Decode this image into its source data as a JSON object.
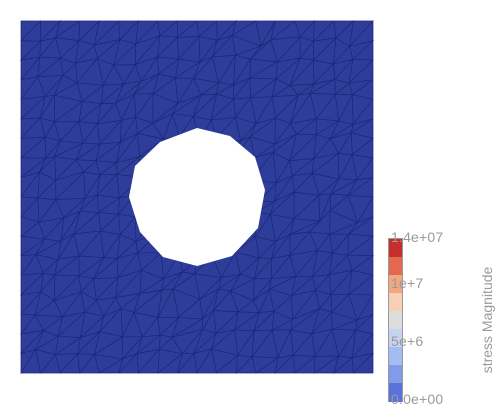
{
  "colors": {
    "mesh_fill": "#2e3d9a",
    "mesh_edge": "#1a2677",
    "hole": "#ffffff",
    "label_text": "#9a9a9a"
  },
  "colorbar": {
    "title": "stress Magnitude",
    "labels": [
      "1.4e+07",
      "1e+7",
      "5e+6",
      "0.0e+00"
    ],
    "range": [
      0,
      14000000
    ],
    "colors": [
      "#c62f2d",
      "#e2694f",
      "#f4a582",
      "#f7cfb6",
      "#dddddd",
      "#c5d3ee",
      "#a4bdf0",
      "#7f9bea",
      "#5a73da"
    ]
  }
}
